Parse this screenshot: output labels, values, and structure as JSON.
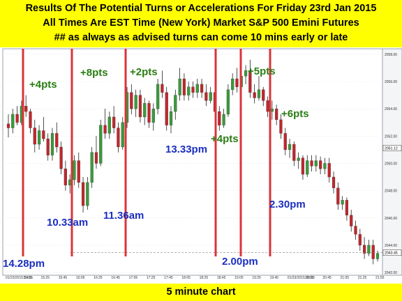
{
  "header": {
    "line1": "Results Of The Potential Turns or Accelerations For Friday 23rd Jan 2015",
    "line2": "All Times Are EST Time (New York) Market S&P 500 Emini Futures",
    "line3": "## as always as advised turns can come 10 mins early or late"
  },
  "footer": {
    "caption": "5 minute chart"
  },
  "colors": {
    "up": "#3a9a3a",
    "down": "#c0262d",
    "turn_line": "#d9343a",
    "blue_text": "#1a2fc0",
    "green_text": "#2a7d14"
  },
  "chart_data": {
    "type": "candlestick",
    "y_ticks": [
      "2058.00",
      "2056.00",
      "2054.00",
      "2052.00",
      "2050.00",
      "2048.00",
      "2046.00",
      "2044.00",
      "2042.00"
    ],
    "y_range": [
      2041.8,
      2058.4
    ],
    "price_tags": [
      "2051.12",
      "2043.45"
    ],
    "x_ticks": [
      "01/23/2015 14:15",
      "15:05",
      "15:25",
      "15:45",
      "16:05",
      "16:25",
      "16:45",
      "17:05",
      "17:25",
      "17:45",
      "18:05",
      "18:25",
      "18:45",
      "19:05",
      "19:25",
      "19:45",
      "01/23/2015 20:10",
      "20:25",
      "20:45",
      "21:05",
      "21:25",
      "21:55"
    ],
    "turn_times": [
      "14.28pm",
      "10.33am",
      "11.36am",
      "13.33pm",
      "2.00pm",
      "2.30pm"
    ],
    "moves": [
      "+4pts",
      "+8pts",
      "+2pts",
      "+4pts",
      "+5pts",
      "+6pts"
    ],
    "candles": [
      [
        2052.9,
        2053.6,
        2051.9,
        2052.6
      ],
      [
        2052.6,
        2054.0,
        2052.2,
        2053.6
      ],
      [
        2053.6,
        2054.2,
        2052.8,
        2053.0
      ],
      [
        2053.0,
        2054.6,
        2052.8,
        2054.2
      ],
      [
        2054.2,
        2055.0,
        2053.4,
        2053.8
      ],
      [
        2053.8,
        2054.0,
        2052.2,
        2052.6
      ],
      [
        2052.6,
        2053.2,
        2050.8,
        2051.4
      ],
      [
        2051.4,
        2052.8,
        2051.0,
        2052.4
      ],
      [
        2052.4,
        2053.4,
        2051.6,
        2051.8
      ],
      [
        2051.8,
        2052.2,
        2050.2,
        2050.6
      ],
      [
        2050.6,
        2052.6,
        2050.2,
        2052.2
      ],
      [
        2052.2,
        2053.0,
        2050.8,
        2051.2
      ],
      [
        2051.2,
        2051.6,
        2049.2,
        2049.6
      ],
      [
        2049.6,
        2050.2,
        2048.0,
        2048.4
      ],
      [
        2048.4,
        2049.2,
        2047.8,
        2048.8
      ],
      [
        2048.8,
        2050.6,
        2048.4,
        2050.2
      ],
      [
        2050.2,
        2050.8,
        2048.2,
        2048.6
      ],
      [
        2048.6,
        2049.0,
        2046.4,
        2046.9
      ],
      [
        2046.9,
        2049.0,
        2046.6,
        2048.6
      ],
      [
        2048.6,
        2051.2,
        2048.2,
        2050.8
      ],
      [
        2050.8,
        2052.0,
        2049.6,
        2050.0
      ],
      [
        2050.0,
        2053.2,
        2049.8,
        2052.8
      ],
      [
        2052.8,
        2054.0,
        2051.8,
        2052.2
      ],
      [
        2052.2,
        2053.8,
        2051.8,
        2053.4
      ],
      [
        2053.4,
        2054.2,
        2052.2,
        2052.6
      ],
      [
        2052.6,
        2053.0,
        2050.8,
        2051.2
      ],
      [
        2051.2,
        2053.4,
        2051.0,
        2053.0
      ],
      [
        2053.0,
        2055.6,
        2052.6,
        2055.2
      ],
      [
        2055.2,
        2055.8,
        2053.6,
        2054.0
      ],
      [
        2054.0,
        2055.4,
        2053.4,
        2055.0
      ],
      [
        2055.0,
        2055.4,
        2053.0,
        2053.4
      ],
      [
        2053.4,
        2054.8,
        2052.8,
        2054.4
      ],
      [
        2054.4,
        2054.6,
        2052.6,
        2053.0
      ],
      [
        2053.0,
        2054.4,
        2052.4,
        2054.0
      ],
      [
        2054.0,
        2056.2,
        2053.6,
        2055.8
      ],
      [
        2055.8,
        2056.8,
        2054.8,
        2055.2
      ],
      [
        2055.2,
        2055.6,
        2052.4,
        2052.8
      ],
      [
        2052.8,
        2054.2,
        2052.2,
        2053.8
      ],
      [
        2053.8,
        2055.4,
        2053.2,
        2055.0
      ],
      [
        2055.0,
        2057.0,
        2054.6,
        2056.2
      ],
      [
        2056.2,
        2056.6,
        2054.6,
        2055.0
      ],
      [
        2055.0,
        2056.0,
        2054.6,
        2055.6
      ],
      [
        2055.6,
        2056.0,
        2054.8,
        2055.2
      ],
      [
        2055.2,
        2056.2,
        2054.8,
        2055.8
      ],
      [
        2055.8,
        2056.2,
        2054.8,
        2055.2
      ],
      [
        2055.2,
        2055.8,
        2054.2,
        2054.6
      ],
      [
        2054.6,
        2055.6,
        2054.4,
        2055.2
      ],
      [
        2055.2,
        2055.6,
        2053.4,
        2053.8
      ],
      [
        2053.8,
        2054.2,
        2052.4,
        2052.8
      ],
      [
        2052.8,
        2054.0,
        2052.6,
        2053.6
      ],
      [
        2053.6,
        2055.8,
        2053.4,
        2055.4
      ],
      [
        2055.4,
        2056.6,
        2055.0,
        2056.2
      ],
      [
        2056.2,
        2057.0,
        2055.2,
        2055.6
      ],
      [
        2055.6,
        2056.8,
        2055.4,
        2056.4
      ],
      [
        2056.4,
        2057.2,
        2055.8,
        2056.8
      ],
      [
        2056.8,
        2057.6,
        2054.8,
        2055.2
      ],
      [
        2055.2,
        2055.8,
        2054.4,
        2054.8
      ],
      [
        2054.8,
        2056.4,
        2054.6,
        2055.4
      ],
      [
        2055.4,
        2055.6,
        2054.2,
        2054.6
      ],
      [
        2054.6,
        2054.9,
        2053.4,
        2053.8
      ],
      [
        2053.8,
        2054.6,
        2053.2,
        2054.0
      ],
      [
        2054.0,
        2054.3,
        2052.8,
        2053.2
      ],
      [
        2053.2,
        2053.6,
        2051.8,
        2052.2
      ],
      [
        2052.2,
        2052.6,
        2050.6,
        2051.0
      ],
      [
        2051.0,
        2051.8,
        2050.4,
        2051.4
      ],
      [
        2051.4,
        2051.6,
        2049.8,
        2050.2
      ],
      [
        2050.2,
        2050.8,
        2049.6,
        2050.4
      ],
      [
        2050.4,
        2050.6,
        2048.8,
        2049.2
      ],
      [
        2049.2,
        2050.6,
        2049.0,
        2050.2
      ],
      [
        2050.2,
        2050.6,
        2049.4,
        2049.8
      ],
      [
        2049.8,
        2050.6,
        2049.4,
        2050.2
      ],
      [
        2050.2,
        2050.5,
        2049.2,
        2049.6
      ],
      [
        2049.6,
        2050.4,
        2049.2,
        2050.0
      ],
      [
        2050.0,
        2050.4,
        2048.6,
        2049.0
      ],
      [
        2049.0,
        2049.4,
        2047.8,
        2048.2
      ],
      [
        2048.2,
        2048.6,
        2046.6,
        2047.0
      ],
      [
        2047.0,
        2047.6,
        2046.6,
        2047.3
      ],
      [
        2047.3,
        2047.5,
        2045.8,
        2046.2
      ],
      [
        2046.2,
        2046.6,
        2045.0,
        2045.4
      ],
      [
        2045.4,
        2045.8,
        2044.4,
        2044.8
      ],
      [
        2044.8,
        2045.2,
        2043.6,
        2044.0
      ],
      [
        2044.0,
        2044.6,
        2043.0,
        2043.4
      ],
      [
        2043.4,
        2044.4,
        2043.2,
        2044.0
      ],
      [
        2044.0,
        2044.4,
        2042.6,
        2043.0
      ],
      [
        2043.0,
        2043.6,
        2042.8,
        2043.4
      ]
    ]
  }
}
